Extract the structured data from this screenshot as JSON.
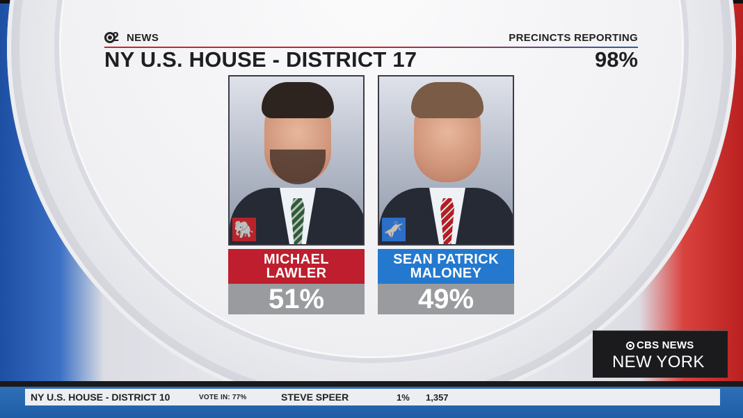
{
  "broadcast": {
    "station_name": "NEWS",
    "station_logo_number": "2",
    "race_title": "NY U.S. HOUSE - DISTRICT 17",
    "precincts_label": "PRECINCTS REPORTING",
    "precincts_value": "98%"
  },
  "candidates": [
    {
      "first_line": "MICHAEL",
      "second_line": "LAWLER",
      "percent": "51%",
      "party_icon": "elephant-icon",
      "party_color": "#be1e2d",
      "party_glyph": "🐘"
    },
    {
      "first_line": "SEAN PATRICK",
      "second_line": "MALONEY",
      "percent": "49%",
      "party_icon": "donkey-icon",
      "party_color": "#2479cf",
      "party_glyph": "🫏"
    }
  ],
  "network_bug": {
    "name": "CBS NEWS",
    "city": "NEW YORK"
  },
  "ticker": {
    "race": "NY U.S. HOUSE - DISTRICT 10",
    "vote_in": "VOTE IN: 77%",
    "candidate": "STEVE SPEER",
    "percent": "1%",
    "votes": "1,357"
  }
}
